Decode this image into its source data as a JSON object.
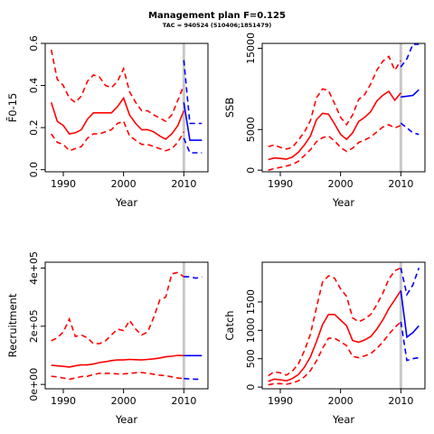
{
  "page": {
    "title": "Management plan F=0.125",
    "subtitle": "TAC = 940524 (510406;1851479)"
  },
  "colors": {
    "historical": "#ff0000",
    "projection": "#0000ff",
    "divider": "#c8c8c8"
  },
  "chart_data": [
    {
      "id": "fbar",
      "type": "line",
      "xlabel": "Year",
      "ylabel": "F̄0-15",
      "xlim": [
        1987,
        2014
      ],
      "ylim": [
        -0.01,
        0.6
      ],
      "xticks": [
        1990,
        2000,
        2010
      ],
      "yticks": [
        0.0,
        0.2,
        0.4,
        0.6
      ],
      "ytick_labels": [
        "0.0",
        "0.2",
        "0.4",
        "0.6"
      ],
      "divider_x": 2010,
      "historical": {
        "x": [
          1988,
          1989,
          1990,
          1991,
          1992,
          1993,
          1994,
          1995,
          1996,
          1997,
          1998,
          1999,
          2000,
          2001,
          2002,
          2003,
          2004,
          2005,
          2006,
          2007,
          2008,
          2009,
          2010
        ],
        "median": [
          0.32,
          0.23,
          0.21,
          0.17,
          0.175,
          0.19,
          0.24,
          0.27,
          0.27,
          0.27,
          0.27,
          0.3,
          0.34,
          0.26,
          0.22,
          0.19,
          0.19,
          0.18,
          0.16,
          0.145,
          0.17,
          0.21,
          0.28
        ],
        "upper": [
          0.57,
          0.43,
          0.4,
          0.34,
          0.32,
          0.35,
          0.42,
          0.45,
          0.44,
          0.4,
          0.39,
          0.42,
          0.48,
          0.37,
          0.32,
          0.28,
          0.28,
          0.26,
          0.245,
          0.23,
          0.26,
          0.33,
          0.4
        ],
        "lower": [
          0.17,
          0.13,
          0.12,
          0.09,
          0.1,
          0.11,
          0.15,
          0.17,
          0.17,
          0.18,
          0.19,
          0.22,
          0.23,
          0.16,
          0.14,
          0.12,
          0.12,
          0.11,
          0.1,
          0.09,
          0.1,
          0.13,
          0.18
        ]
      },
      "projection": {
        "x": [
          2010,
          2011,
          2012,
          2013
        ],
        "median": [
          0.32,
          0.14,
          0.14,
          0.14
        ],
        "upper": [
          0.52,
          0.22,
          0.22,
          0.22
        ],
        "lower": [
          0.15,
          0.08,
          0.08,
          0.08
        ]
      }
    },
    {
      "id": "ssb",
      "type": "line",
      "xlabel": "Year",
      "ylabel": "SSB",
      "xlim": [
        1987,
        2014
      ],
      "ylim": [
        -200,
        15600
      ],
      "xticks": [
        1990,
        2000,
        2010
      ],
      "yticks": [
        0,
        5000,
        15000
      ],
      "ytick_labels": [
        "0",
        "5000",
        "15000"
      ],
      "divider_x": 2010,
      "historical": {
        "x": [
          1988,
          1989,
          1990,
          1991,
          1992,
          1993,
          1994,
          1995,
          1996,
          1997,
          1998,
          1999,
          2000,
          2001,
          2002,
          2003,
          2004,
          2005,
          2006,
          2007,
          2008,
          2009,
          2010
        ],
        "median": [
          1300,
          1500,
          1450,
          1350,
          1600,
          2200,
          3100,
          4200,
          6200,
          7000,
          6900,
          5700,
          4400,
          3800,
          4600,
          6000,
          6500,
          7200,
          8500,
          9200,
          9700,
          8600,
          9500
        ],
        "upper": [
          2900,
          3100,
          2800,
          2600,
          2800,
          3700,
          4700,
          6100,
          8900,
          10000,
          9800,
          8200,
          6500,
          5600,
          6800,
          8700,
          9300,
          10600,
          12300,
          13400,
          14000,
          12300,
          13500
        ],
        "lower": [
          0,
          200,
          350,
          500,
          700,
          1100,
          1800,
          2500,
          3500,
          4000,
          4200,
          3600,
          2800,
          2300,
          2700,
          3400,
          3700,
          4100,
          4700,
          5300,
          5600,
          5200,
          5500
        ]
      },
      "projection": {
        "x": [
          2010,
          2011,
          2012,
          2013
        ],
        "median": [
          9000,
          9100,
          9200,
          9900
        ],
        "upper": [
          12700,
          13700,
          15500,
          15500
        ],
        "lower": [
          5800,
          5200,
          4600,
          4400
        ]
      }
    },
    {
      "id": "recruitment",
      "type": "line",
      "xlabel": "Year",
      "ylabel": "Recruitment",
      "xlim": [
        1987,
        2014
      ],
      "ylim": [
        -15000,
        420000
      ],
      "xticks": [
        1990,
        2000,
        2010
      ],
      "yticks": [
        0,
        200000,
        400000
      ],
      "ytick_labels": [
        "0e+00",
        "2e+05",
        "4e+05"
      ],
      "divider_x": 2010,
      "historical": {
        "x": [
          1988,
          1989,
          1990,
          1991,
          1992,
          1993,
          1994,
          1995,
          1996,
          1997,
          1998,
          1999,
          2000,
          2001,
          2002,
          2003,
          2004,
          2005,
          2006,
          2007,
          2008,
          2009,
          2010
        ],
        "median": [
          66000,
          64000,
          62000,
          60000,
          64000,
          67000,
          67000,
          70000,
          75000,
          78000,
          82000,
          84000,
          84000,
          86000,
          85000,
          84000,
          86000,
          88000,
          91000,
          95000,
          97000,
          100000,
          99000
        ],
        "upper": [
          150000,
          160000,
          180000,
          225000,
          165000,
          170000,
          160000,
          140000,
          140000,
          150000,
          170000,
          190000,
          185000,
          220000,
          190000,
          170000,
          180000,
          230000,
          290000,
          300000,
          380000,
          385000,
          370000
        ],
        "lower": [
          28000,
          26000,
          22000,
          18000,
          22000,
          27000,
          28000,
          34000,
          38000,
          38000,
          38000,
          36000,
          36000,
          38000,
          40000,
          41000,
          38000,
          35000,
          32000,
          30000,
          26000,
          22000,
          20000
        ]
      },
      "projection": {
        "x": [
          2010,
          2011,
          2012,
          2013
        ],
        "median": [
          99000,
          99000,
          99000,
          99000
        ],
        "upper": [
          370000,
          370000,
          365000,
          370000
        ],
        "lower": [
          20000,
          19000,
          18000,
          18000
        ]
      }
    },
    {
      "id": "catch",
      "type": "line",
      "xlabel": "Year",
      "ylabel": "Catch",
      "xlim": [
        1987,
        2014
      ],
      "ylim": [
        -30,
        2200
      ],
      "xticks": [
        1990,
        2000,
        2010
      ],
      "yticks": [
        0,
        500,
        1000,
        1500
      ],
      "ytick_labels": [
        "0",
        "500",
        "1000",
        "1500"
      ],
      "divider_x": 2010,
      "historical": {
        "x": [
          1988,
          1989,
          1990,
          1991,
          1992,
          1993,
          1994,
          1995,
          1996,
          1997,
          1998,
          1999,
          2000,
          2001,
          2002,
          2003,
          2004,
          2005,
          2006,
          2007,
          2008,
          2009,
          2010
        ],
        "median": [
          100,
          140,
          130,
          110,
          150,
          220,
          350,
          530,
          800,
          1100,
          1280,
          1280,
          1180,
          1080,
          820,
          790,
          830,
          890,
          1020,
          1180,
          1380,
          1540,
          1700
        ],
        "upper": [
          200,
          270,
          250,
          210,
          280,
          410,
          640,
          930,
          1400,
          1850,
          1960,
          1920,
          1730,
          1600,
          1220,
          1150,
          1200,
          1280,
          1450,
          1650,
          1900,
          2050,
          2100
        ],
        "lower": [
          40,
          60,
          60,
          50,
          70,
          110,
          180,
          290,
          460,
          680,
          860,
          860,
          800,
          730,
          540,
          520,
          550,
          590,
          680,
          790,
          930,
          1050,
          1150
        ]
      },
      "projection": {
        "x": [
          2010,
          2011,
          2012,
          2013
        ],
        "median": [
          1700,
          880,
          960,
          1080
        ],
        "upper": [
          2100,
          1630,
          1800,
          2100
        ],
        "lower": [
          1150,
          470,
          500,
          520
        ]
      }
    }
  ]
}
